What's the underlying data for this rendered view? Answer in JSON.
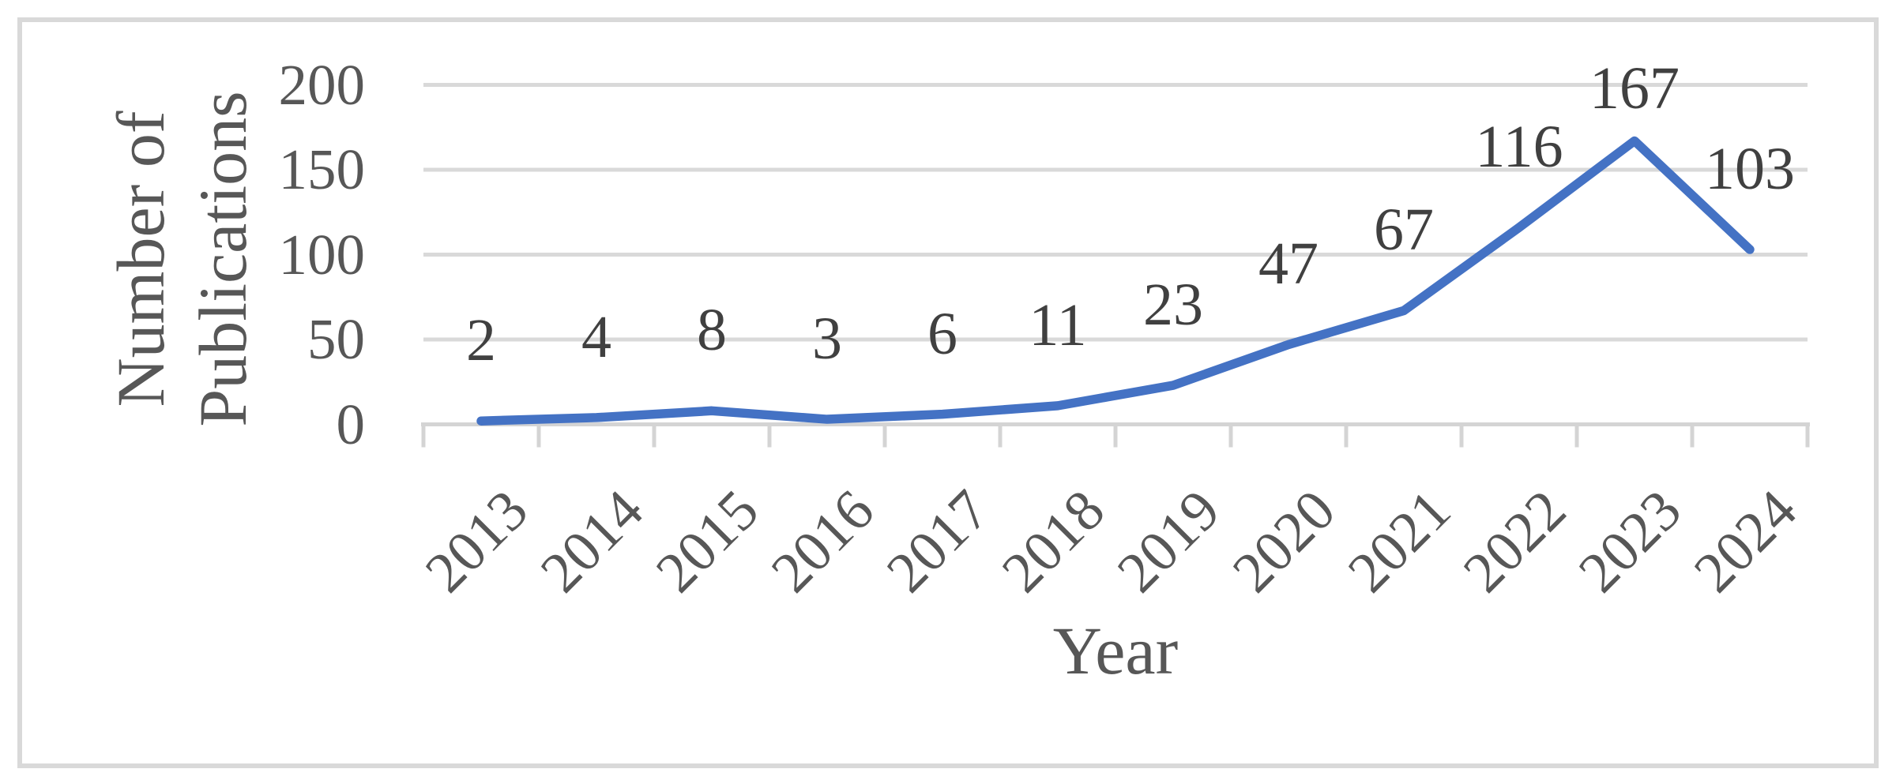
{
  "figure": {
    "type": "journal-figure",
    "border_color": "#d9d9d9",
    "background_color": "#ffffff"
  },
  "chart_data": {
    "type": "line",
    "title": "",
    "xlabel": "Year",
    "ylabel": "Number of Publications",
    "ylabel_lines": [
      "Number of",
      "Publications"
    ],
    "categories": [
      "2013",
      "2014",
      "2015",
      "2016",
      "2017",
      "2018",
      "2019",
      "2020",
      "2021",
      "2022",
      "2023",
      "2024"
    ],
    "values": [
      2,
      4,
      8,
      3,
      6,
      11,
      23,
      47,
      67,
      116,
      167,
      103
    ],
    "yticks": [
      0,
      50,
      100,
      150,
      200
    ],
    "ylim": [
      0,
      200
    ],
    "grid": "horizontal-major",
    "legend": "none",
    "data_labels_position": "above",
    "line_color": "#4472C4",
    "gridline_color": "#d9d9d9",
    "axis_color": "#d4d4d4",
    "tick_text_color": "#575757",
    "data_label_color": "#404040"
  }
}
